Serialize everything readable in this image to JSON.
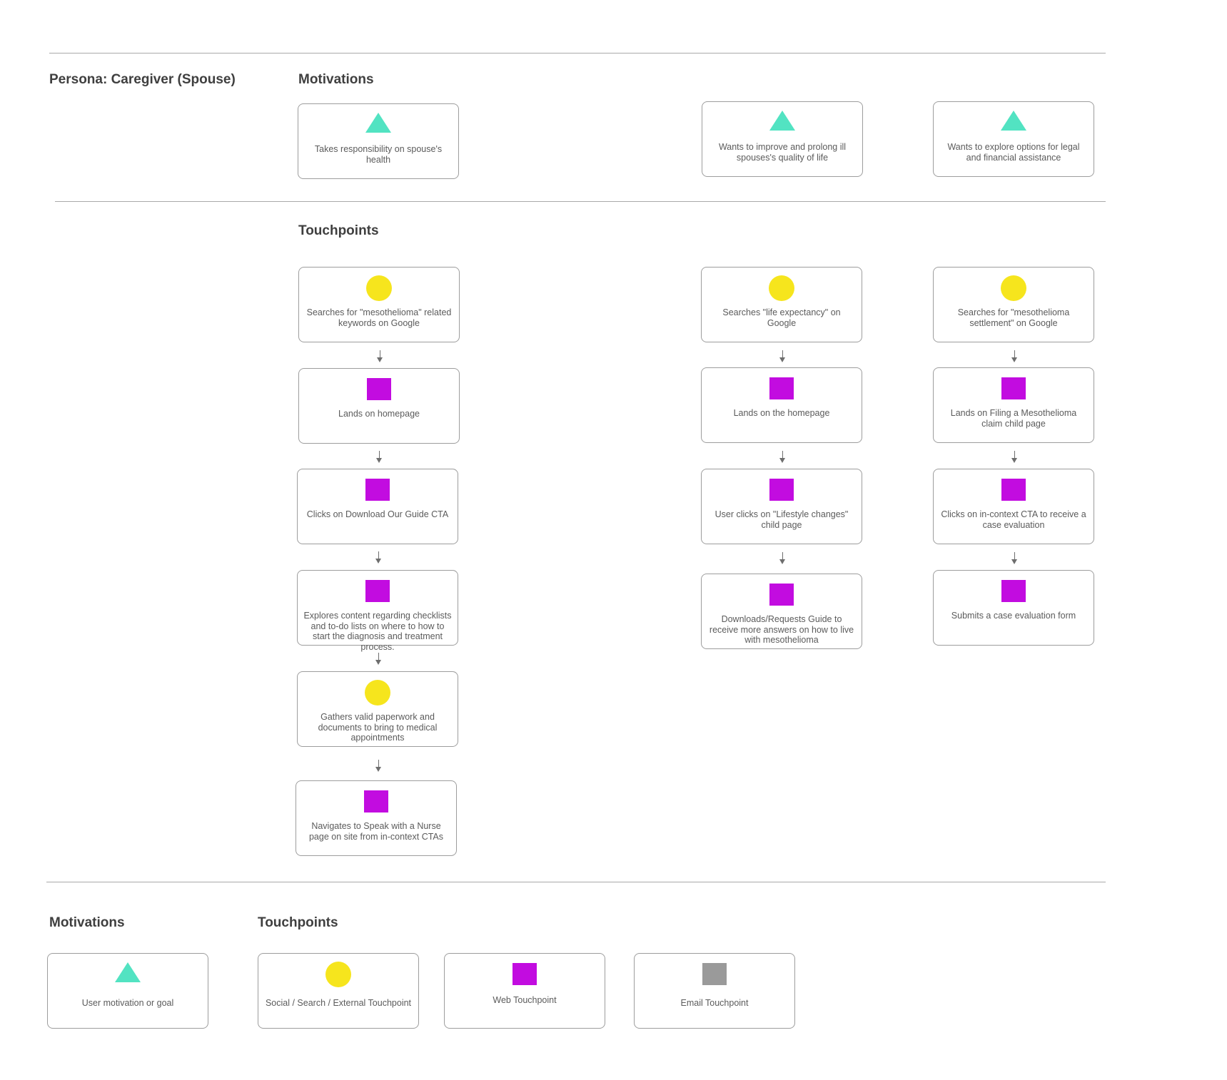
{
  "persona": "Persona: Caregiver (Spouse)",
  "sections": {
    "motivations": "Motivations",
    "touchpoints": "Touchpoints"
  },
  "motivations": [
    {
      "text": "Takes responsibility on spouse's health",
      "icon": "triangle"
    },
    {
      "text": "Wants to improve and prolong ill spouses's quality of life",
      "icon": "triangle"
    },
    {
      "text": "Wants to explore options for legal and financial assistance",
      "icon": "triangle"
    }
  ],
  "journeys": [
    [
      {
        "text": "Searches for \"mesothelioma\" related keywords on Google",
        "icon": "circle"
      },
      {
        "text": "Lands on homepage",
        "icon": "square"
      },
      {
        "text": "Clicks on Download Our Guide CTA",
        "icon": "square"
      },
      {
        "text": "Explores content regarding checklists and to-do lists on where to how to start the diagnosis and treatment process.",
        "icon": "square"
      },
      {
        "text": "Gathers valid paperwork and documents to bring to medical appointments",
        "icon": "circle"
      },
      {
        "text": "Navigates to Speak with a Nurse page on site from in-context CTAs",
        "icon": "square"
      }
    ],
    [
      {
        "text": "Searches \"life expectancy\" on Google",
        "icon": "circle"
      },
      {
        "text": "Lands on the homepage",
        "icon": "square"
      },
      {
        "text": "User clicks on \"Lifestyle changes\" child page",
        "icon": "square"
      },
      {
        "text": "Downloads/Requests Guide to receive more answers on how to live with mesothelioma",
        "icon": "square"
      }
    ],
    [
      {
        "text": "Searches for \"mesothelioma settlement\" on Google",
        "icon": "circle"
      },
      {
        "text": "Lands on Filing a Mesothelioma claim child page",
        "icon": "square"
      },
      {
        "text": "Clicks on in-context CTA to receive a case evaluation",
        "icon": "square"
      },
      {
        "text": "Submits a case evaluation form",
        "icon": "square"
      }
    ]
  ],
  "legend": {
    "motivations_heading": "Motivations",
    "touchpoints_heading": "Touchpoints",
    "motivation": {
      "text": "User motivation or goal",
      "icon": "triangle"
    },
    "social": {
      "text": "Social / Search / External Touchpoint",
      "icon": "circle"
    },
    "web": {
      "text": "Web Touchpoint",
      "icon": "square"
    },
    "email": {
      "text": "Email Touchpoint",
      "icon": "square-gray"
    }
  },
  "colors": {
    "motivation": "#52e3c2",
    "external": "#f6e51d",
    "web": "#c20ce0",
    "email": "#9a9a9a",
    "divider": "#a9a9a9",
    "border": "#9d9d9d"
  }
}
